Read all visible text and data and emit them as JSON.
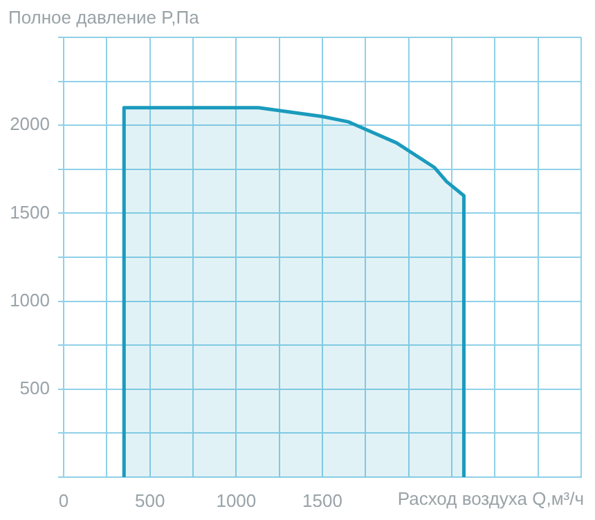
{
  "chart_data": {
    "type": "area",
    "title": "Полное давление P,Па",
    "xlabel": "Расход воздуха Q,м³/ч",
    "series": [
      {
        "color": "#1a9bbd",
        "x": [
          350,
          350,
          1130,
          1500,
          1650,
          1930,
          2150,
          2220,
          2320,
          2320
        ],
        "values": [
          0,
          2100,
          2100,
          2050,
          2020,
          1900,
          1760,
          1680,
          1600,
          0
        ]
      }
    ],
    "xlim": [
      0,
      3000
    ],
    "xticks": [
      0,
      {
        "value": 250,
        "label": null
      },
      500,
      {
        "value": 750,
        "label": null
      },
      1000,
      {
        "value": 1250,
        "label": null
      },
      1500,
      {
        "value": 1750,
        "label": null
      },
      {
        "value": 2000,
        "label": null
      },
      {
        "value": 2250,
        "label": null
      },
      {
        "value": 2500,
        "label": null
      },
      {
        "value": 2750,
        "label": null
      },
      {
        "value": 3000,
        "label": null
      }
    ],
    "ylim": [
      0,
      2500
    ],
    "yticks": [
      {
        "value": 0,
        "label": null
      },
      {
        "value": 250,
        "label": null
      },
      500,
      {
        "value": 750,
        "label": null
      },
      1000,
      {
        "value": 1250,
        "label": null
      },
      1500,
      {
        "value": 1750,
        "label": null
      },
      2000,
      {
        "value": 2250,
        "label": null
      },
      {
        "value": 2500,
        "label": null
      }
    ],
    "grid": true,
    "marker": "none",
    "legend": false
  }
}
